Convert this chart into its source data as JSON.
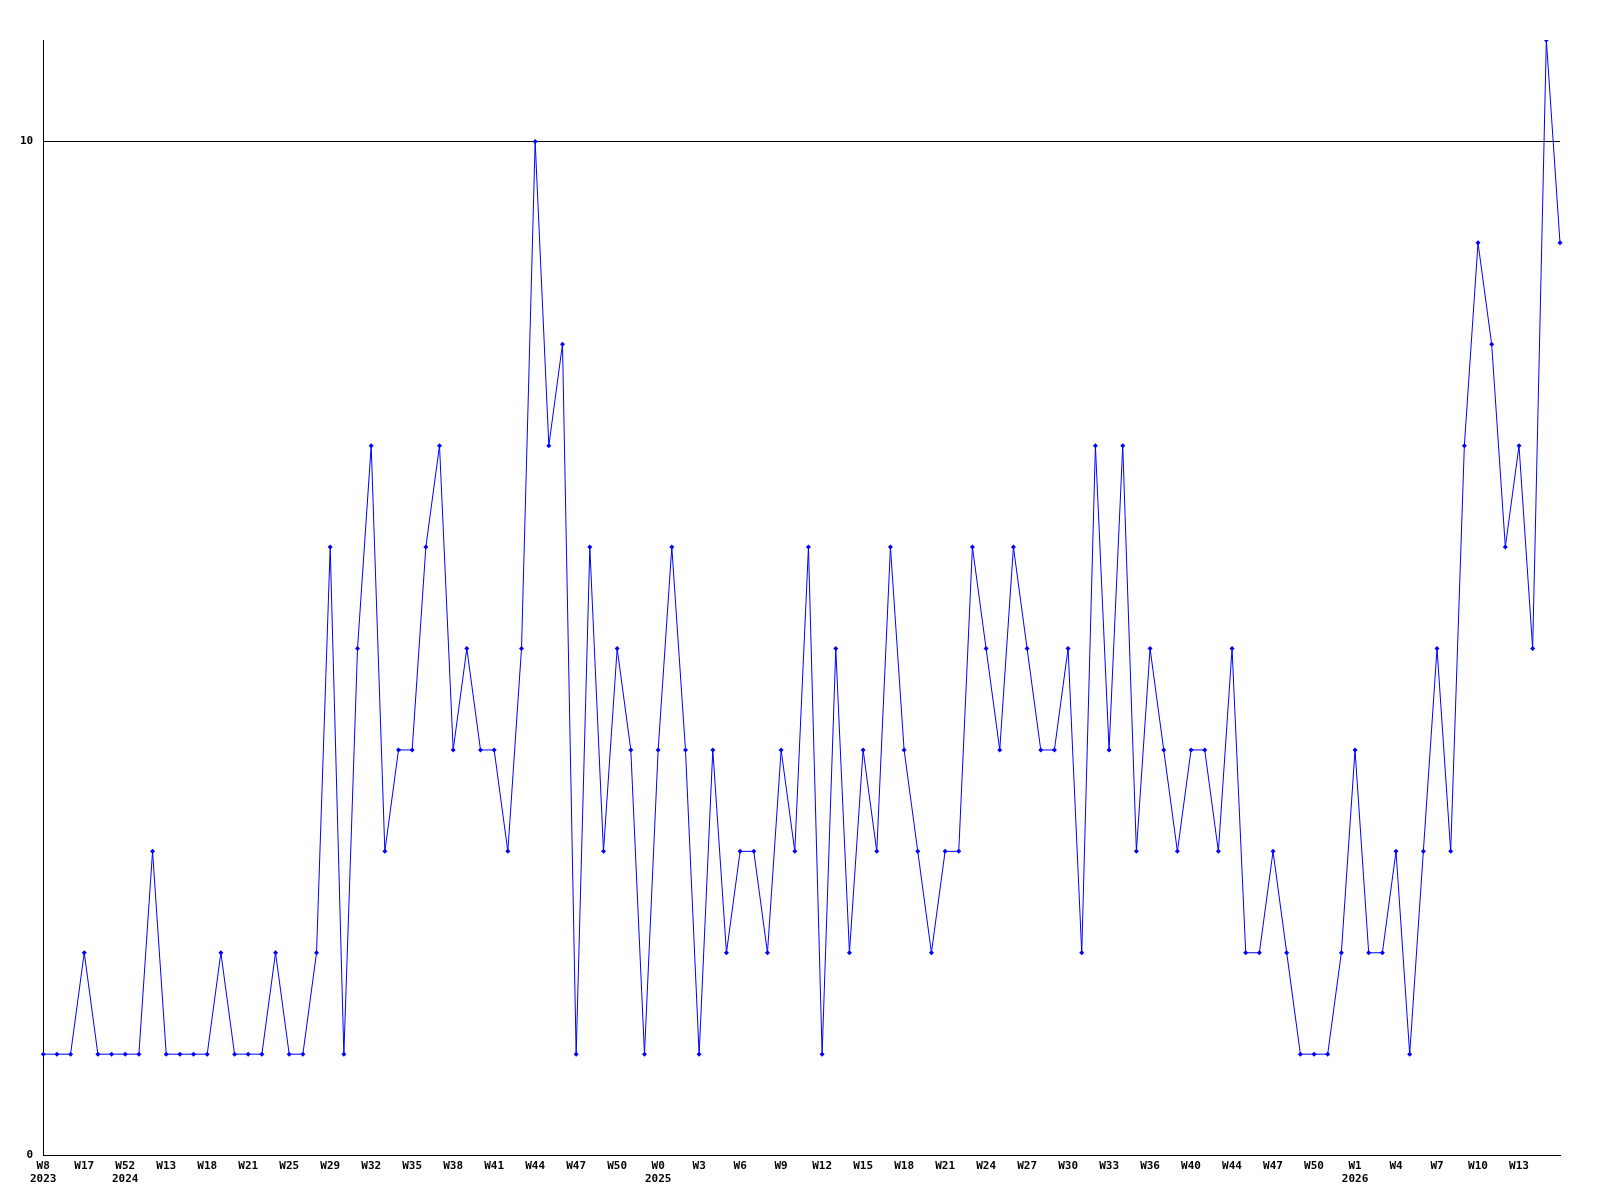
{
  "chart_data": {
    "type": "line",
    "categories": [
      "W8\n2023",
      null,
      null,
      "W17",
      null,
      null,
      "W52\n2024",
      null,
      null,
      "W13",
      null,
      null,
      "W18",
      null,
      null,
      "W21",
      null,
      null,
      "W25",
      null,
      null,
      "W29",
      null,
      null,
      "W32",
      null,
      null,
      "W35",
      null,
      null,
      "W38",
      null,
      null,
      "W41",
      null,
      null,
      "W44",
      null,
      null,
      "W47",
      null,
      null,
      "W50",
      null,
      null,
      "W0\n2025",
      null,
      null,
      "W3",
      null,
      null,
      "W6",
      null,
      null,
      "W9",
      null,
      null,
      "W12",
      null,
      null,
      "W15",
      null,
      null,
      "W18",
      null,
      null,
      "W21",
      null,
      null,
      "W24",
      null,
      null,
      "W27",
      null,
      null,
      "W30",
      null,
      null,
      "W33",
      null,
      null,
      "W36",
      null,
      null,
      "W40",
      null,
      null,
      "W44",
      null,
      null,
      "W47",
      null,
      null,
      "W50",
      null,
      null,
      "W1\n2026",
      null,
      null,
      "W4",
      null,
      null,
      "W7",
      null,
      null,
      "W10",
      null,
      null,
      "W13",
      null,
      null,
      null
    ],
    "series": [
      {
        "color": "#0000ff",
        "values": [
          1,
          1,
          1,
          2,
          1,
          1,
          1,
          1,
          3,
          1,
          1,
          1,
          1,
          2,
          1,
          1,
          1,
          2,
          1,
          1,
          2,
          6,
          1,
          5,
          7,
          3,
          4,
          4,
          6,
          7,
          4,
          5,
          4,
          4,
          3,
          5,
          10,
          7,
          8,
          1,
          6,
          3,
          5,
          4,
          1,
          4,
          6,
          4,
          1,
          4,
          2,
          3,
          3,
          2,
          4,
          3,
          6,
          1,
          5,
          2,
          4,
          3,
          6,
          4,
          3,
          2,
          3,
          3,
          6,
          5,
          4,
          6,
          5,
          4,
          4,
          5,
          2,
          7,
          4,
          7,
          3,
          5,
          4,
          3,
          4,
          4,
          3,
          5,
          2,
          2,
          3,
          2,
          1,
          1,
          1,
          2,
          4,
          2,
          2,
          3,
          1,
          3,
          5,
          3,
          7,
          9,
          8,
          6,
          7,
          5,
          11,
          9
        ]
      }
    ],
    "ylim": [
      0,
      11
    ],
    "yticks": [
      0,
      10
    ],
    "grid": "y",
    "legend": false,
    "marker": "diamond",
    "line_style": "solid"
  }
}
